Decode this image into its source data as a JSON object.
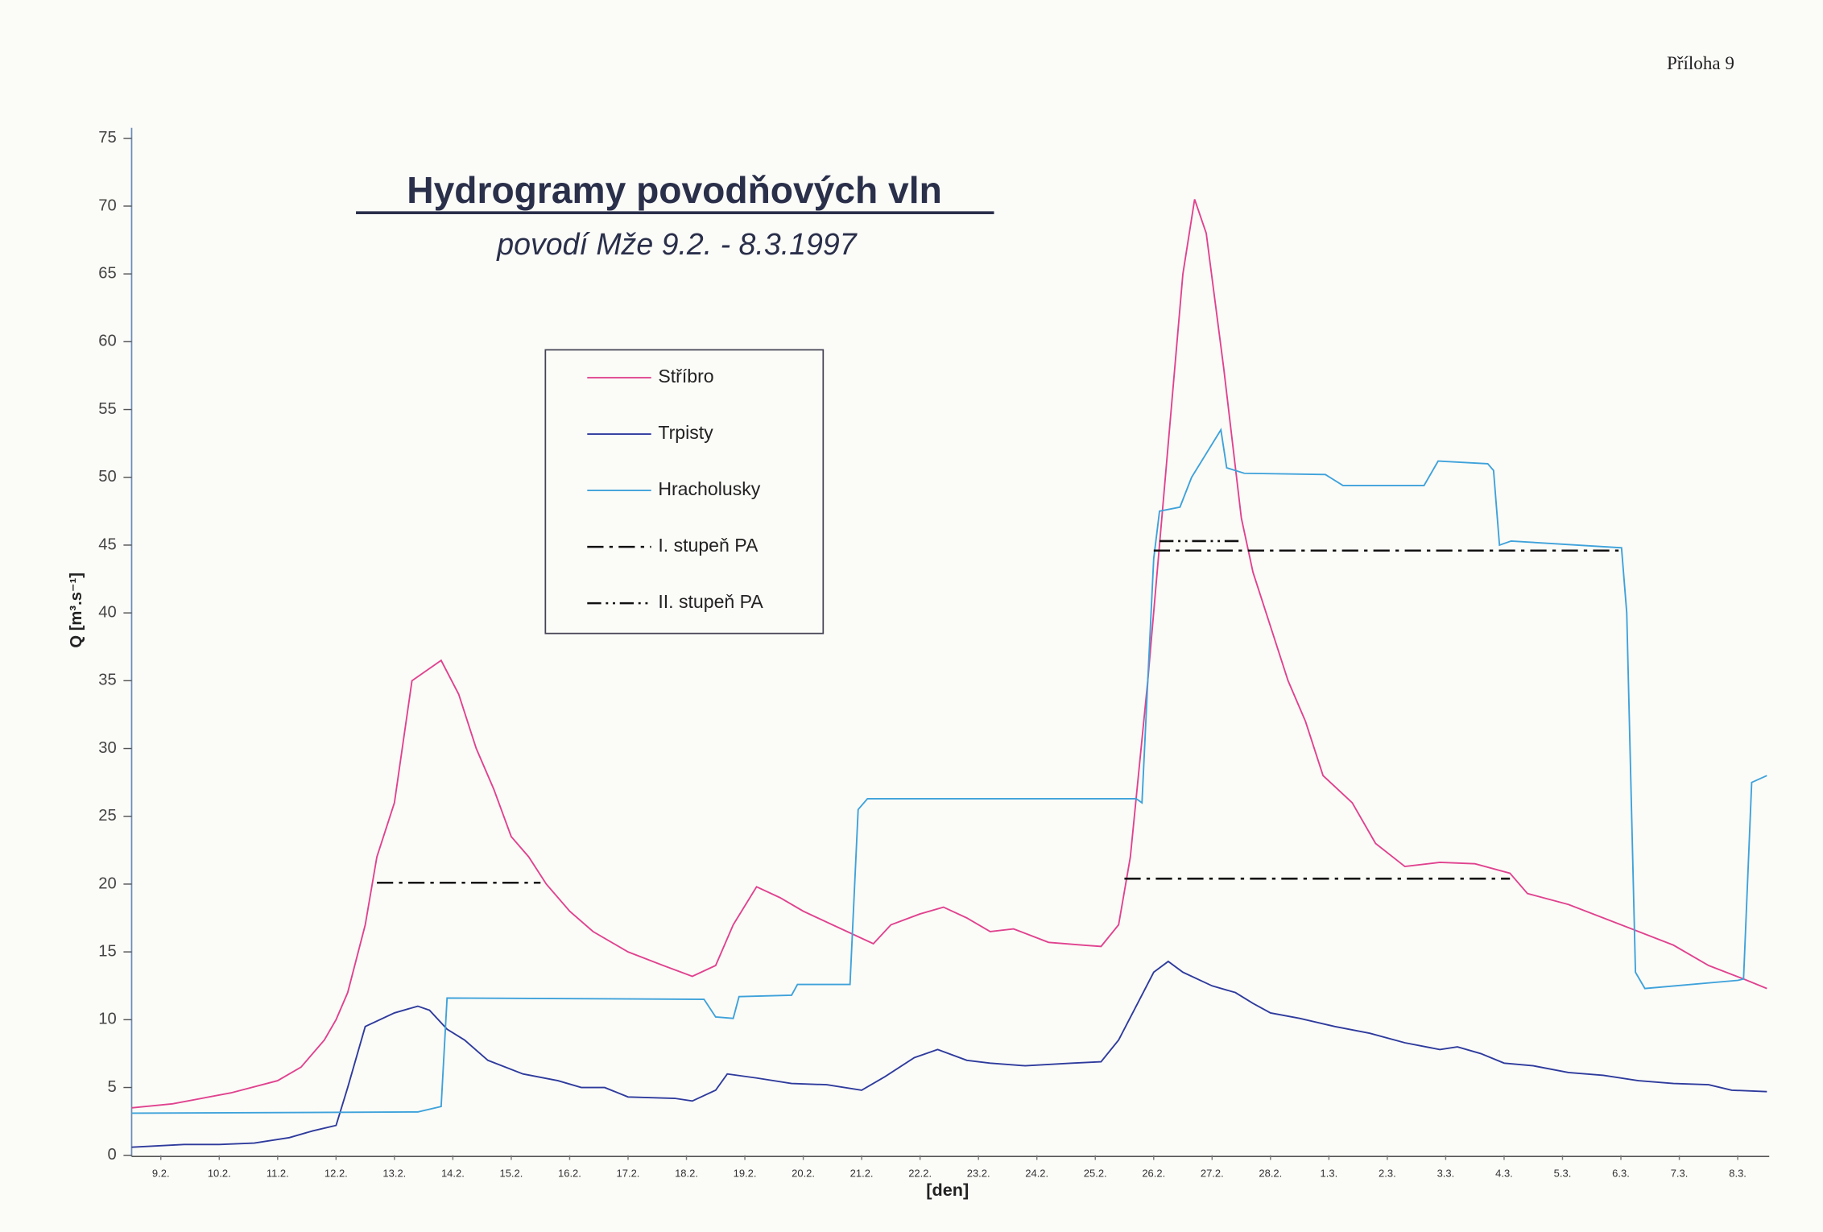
{
  "annex": "Příloha 9",
  "chart_data": {
    "type": "line",
    "title": "Hydrogramy povodňových vln",
    "subtitle": "povodí Mže 9.2. - 8.3.1997",
    "xlabel": "[den]",
    "ylabel": "Q [m³.s⁻¹]",
    "xlim": [
      0,
      28
    ],
    "ylim": [
      0,
      75
    ],
    "yticks": [
      0,
      5,
      10,
      15,
      20,
      25,
      30,
      35,
      40,
      45,
      50,
      55,
      60,
      65,
      70,
      75
    ],
    "xticks": [
      {
        "value": 0.5,
        "label": "9.2."
      },
      {
        "value": 1.5,
        "label": "10.2."
      },
      {
        "value": 2.5,
        "label": "11.2."
      },
      {
        "value": 3.5,
        "label": "12.2."
      },
      {
        "value": 4.5,
        "label": "13.2."
      },
      {
        "value": 5.5,
        "label": "14.2."
      },
      {
        "value": 6.5,
        "label": "15.2."
      },
      {
        "value": 7.5,
        "label": "16.2."
      },
      {
        "value": 8.5,
        "label": "17.2."
      },
      {
        "value": 9.5,
        "label": "18.2."
      },
      {
        "value": 10.5,
        "label": "19.2."
      },
      {
        "value": 11.5,
        "label": "20.2."
      },
      {
        "value": 12.5,
        "label": "21.2."
      },
      {
        "value": 13.5,
        "label": "22.2."
      },
      {
        "value": 14.5,
        "label": "23.2."
      },
      {
        "value": 15.5,
        "label": "24.2."
      },
      {
        "value": 16.5,
        "label": "25.2."
      },
      {
        "value": 17.5,
        "label": "26.2."
      },
      {
        "value": 18.5,
        "label": "27.2."
      },
      {
        "value": 19.5,
        "label": "28.2."
      },
      {
        "value": 20.5,
        "label": "1.3."
      },
      {
        "value": 21.5,
        "label": "2.3."
      },
      {
        "value": 22.5,
        "label": "3.3."
      },
      {
        "value": 23.5,
        "label": "4.3."
      },
      {
        "value": 24.5,
        "label": "5.3."
      },
      {
        "value": 25.5,
        "label": "6.3."
      },
      {
        "value": 26.5,
        "label": "7.3."
      },
      {
        "value": 27.5,
        "label": "8.3."
      }
    ],
    "series": [
      {
        "name": "Stříbro",
        "color": "#e0428e",
        "dash": "solid",
        "x": [
          0,
          0.7,
          1.7,
          2.5,
          2.9,
          3.3,
          3.5,
          3.7,
          4.0,
          4.2,
          4.5,
          4.8,
          5.3,
          5.6,
          5.9,
          6.2,
          6.5,
          6.8,
          7.1,
          7.5,
          7.9,
          8.5,
          9.1,
          9.6,
          10.0,
          10.3,
          10.7,
          11.1,
          11.5,
          12.0,
          12.5,
          12.7,
          13.0,
          13.5,
          13.9,
          14.3,
          14.7,
          15.1,
          15.7,
          16.3,
          16.6,
          16.9,
          17.1,
          17.4,
          17.7,
          18.0,
          18.2,
          18.4,
          18.7,
          19.0,
          19.2,
          19.5,
          19.8,
          20.1,
          20.4,
          20.9,
          21.3,
          21.8,
          22.4,
          23.0,
          23.6,
          23.9,
          24.6,
          25.2,
          25.8,
          26.4,
          27.0,
          27.6,
          28.0
        ],
        "values": [
          3.5,
          3.8,
          4.6,
          5.5,
          6.5,
          8.5,
          10,
          12,
          17,
          22,
          26,
          35,
          36.5,
          34,
          30,
          27,
          23.5,
          22,
          20,
          18,
          16.5,
          15,
          14,
          13.2,
          14,
          17,
          19.8,
          19,
          18,
          17,
          16,
          15.6,
          17,
          17.8,
          18.3,
          17.5,
          16.5,
          16.7,
          15.7,
          15.5,
          15.4,
          17,
          22,
          35,
          50,
          65,
          70.5,
          68,
          58,
          47,
          43,
          39,
          35,
          32,
          28,
          26,
          23,
          21.3,
          21.6,
          21.5,
          20.8,
          19.3,
          18.5,
          17.5,
          16.5,
          15.5,
          14,
          13,
          12.3
        ]
      },
      {
        "name": "Trpisty",
        "color": "#2e3b9c",
        "dash": "solid",
        "x": [
          0,
          0.9,
          1.5,
          2.1,
          2.7,
          3.1,
          3.5,
          3.7,
          4.0,
          4.5,
          4.9,
          5.1,
          5.4,
          5.7,
          6.1,
          6.7,
          7.3,
          7.7,
          8.1,
          8.5,
          9.3,
          9.6,
          10.0,
          10.2,
          10.7,
          11.3,
          11.9,
          12.5,
          12.9,
          13.4,
          13.8,
          14.3,
          14.7,
          15.3,
          16.1,
          16.6,
          16.9,
          17.2,
          17.5,
          17.75,
          18.0,
          18.5,
          18.9,
          19.2,
          19.5,
          20.0,
          20.6,
          21.2,
          21.8,
          22.4,
          22.7,
          23.1,
          23.5,
          24.0,
          24.6,
          25.2,
          25.8,
          26.4,
          27.0,
          27.4,
          28.0
        ],
        "values": [
          0.6,
          0.8,
          0.8,
          0.9,
          1.3,
          1.8,
          2.2,
          5,
          9.5,
          10.5,
          11,
          10.7,
          9.3,
          8.5,
          7,
          6,
          5.5,
          5,
          5,
          4.3,
          4.2,
          4,
          4.8,
          6,
          5.7,
          5.3,
          5.2,
          4.8,
          5.8,
          7.2,
          7.8,
          7,
          6.8,
          6.6,
          6.8,
          6.9,
          8.5,
          11,
          13.5,
          14.3,
          13.5,
          12.5,
          12,
          11.2,
          10.5,
          10.1,
          9.5,
          9,
          8.3,
          7.8,
          8,
          7.5,
          6.8,
          6.6,
          6.1,
          5.9,
          5.5,
          5.3,
          5.2,
          4.8,
          4.7
        ]
      },
      {
        "name": "Hracholusky",
        "color": "#3ea2da",
        "dash": "solid",
        "x": [
          0,
          4.9,
          5.3,
          5.4,
          9.8,
          10.0,
          10.3,
          10.4,
          11.3,
          11.4,
          12.3,
          12.44,
          12.6,
          17.2,
          17.3,
          17.4,
          17.5,
          17.6,
          17.95,
          18.15,
          18.65,
          18.75,
          19.05,
          20.44,
          20.74,
          22.13,
          22.37,
          23.22,
          23.32,
          23.42,
          23.62,
          25.51,
          25.6,
          25.75,
          25.91,
          27.5,
          27.6,
          27.74,
          28.0
        ],
        "values": [
          3.1,
          3.2,
          3.6,
          11.6,
          11.5,
          10.2,
          10.1,
          11.7,
          11.8,
          12.6,
          12.6,
          25.5,
          26.3,
          26.3,
          26,
          35,
          44,
          47.5,
          47.8,
          50,
          53.5,
          50.7,
          50.3,
          50.2,
          49.4,
          49.4,
          51.2,
          51,
          50.5,
          45,
          45.3,
          44.8,
          40,
          13.5,
          12.3,
          12.9,
          13,
          27.5,
          28
        ]
      },
      {
        "name": "I. stupeň PA",
        "color": "#111111",
        "dash": "dash-dot",
        "x": [
          4.2,
          7.0,
          7.0,
          17.0,
          23.6,
          23.6,
          17.5,
          25.5
        ],
        "values": [
          20.1,
          20.1,
          null,
          20.4,
          20.4,
          null,
          44.6,
          44.6
        ]
      },
      {
        "name": "II. stupeň PA",
        "color": "#111111",
        "dash": "dash-dot-dot",
        "x": [
          17.6,
          19.0
        ],
        "values": [
          45.3,
          45.3
        ]
      }
    ]
  }
}
